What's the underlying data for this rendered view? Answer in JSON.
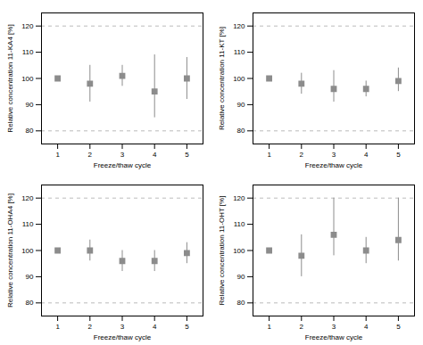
{
  "chart_data": [
    {
      "type": "scatter",
      "xlabel": "Freeze/thaw cycle",
      "ylabel": "Relative concentration 11-KA4 [%]",
      "x": [
        1,
        2,
        3,
        4,
        5
      ],
      "values": [
        100,
        98,
        101,
        95,
        100
      ],
      "error_low": [
        0,
        7,
        4,
        10,
        8
      ],
      "error_high": [
        0,
        7,
        4,
        14,
        8
      ],
      "color": "#8c8c8c",
      "marker": "square",
      "reference_lines": [
        {
          "value": 80,
          "color": "#aaaaaa",
          "line_style": "dashed"
        },
        {
          "value": 120,
          "color": "#aaaaaa",
          "line_style": "dashed"
        }
      ],
      "xlim": [
        0.5,
        5.5
      ],
      "xticks": [
        1,
        2,
        3,
        4,
        5
      ],
      "ylim": [
        75,
        125
      ],
      "yticks": [
        80,
        90,
        100,
        110,
        120
      ],
      "grid": false
    },
    {
      "type": "scatter",
      "xlabel": "Freeze/thaw cycle",
      "ylabel": "Relative concentration 11-KT [%]",
      "x": [
        1,
        2,
        3,
        4,
        5
      ],
      "values": [
        100,
        98,
        96,
        96,
        99
      ],
      "error_low": [
        0,
        4,
        5,
        3,
        4
      ],
      "error_high": [
        0,
        4,
        7,
        3,
        5
      ],
      "color": "#8c8c8c",
      "marker": "square",
      "reference_lines": [
        {
          "value": 80,
          "color": "#aaaaaa",
          "line_style": "dashed"
        },
        {
          "value": 120,
          "color": "#aaaaaa",
          "line_style": "dashed"
        }
      ],
      "xlim": [
        0.5,
        5.5
      ],
      "xticks": [
        1,
        2,
        3,
        4,
        5
      ],
      "ylim": [
        75,
        125
      ],
      "yticks": [
        80,
        90,
        100,
        110,
        120
      ],
      "grid": false
    },
    {
      "type": "scatter",
      "xlabel": "Freeze/thaw cycle",
      "ylabel": "Relative concentration 11-OHA4 [%]",
      "x": [
        1,
        2,
        3,
        4,
        5
      ],
      "values": [
        100,
        100,
        96,
        96,
        99
      ],
      "error_low": [
        0,
        4,
        4,
        4,
        4
      ],
      "error_high": [
        0,
        4,
        4,
        4,
        4
      ],
      "color": "#8c8c8c",
      "marker": "square",
      "reference_lines": [
        {
          "value": 80,
          "color": "#aaaaaa",
          "line_style": "dashed"
        },
        {
          "value": 120,
          "color": "#aaaaaa",
          "line_style": "dashed"
        }
      ],
      "xlim": [
        0.5,
        5.5
      ],
      "xticks": [
        1,
        2,
        3,
        4,
        5
      ],
      "ylim": [
        75,
        125
      ],
      "yticks": [
        80,
        90,
        100,
        110,
        120
      ],
      "grid": false
    },
    {
      "type": "scatter",
      "xlabel": "Freeze/thaw cycle",
      "ylabel": "Relative concentration 11-OHT [%]",
      "x": [
        1,
        2,
        3,
        4,
        5
      ],
      "values": [
        100,
        98,
        106,
        100,
        104
      ],
      "error_low": [
        0,
        8,
        8,
        5,
        8
      ],
      "error_high": [
        0,
        8,
        14,
        5,
        16
      ],
      "color": "#8c8c8c",
      "marker": "square",
      "reference_lines": [
        {
          "value": 80,
          "color": "#aaaaaa",
          "line_style": "dashed"
        },
        {
          "value": 120,
          "color": "#aaaaaa",
          "line_style": "dashed"
        }
      ],
      "xlim": [
        0.5,
        5.5
      ],
      "xticks": [
        1,
        2,
        3,
        4,
        5
      ],
      "ylim": [
        75,
        125
      ],
      "yticks": [
        80,
        90,
        100,
        110,
        120
      ],
      "grid": false
    }
  ]
}
